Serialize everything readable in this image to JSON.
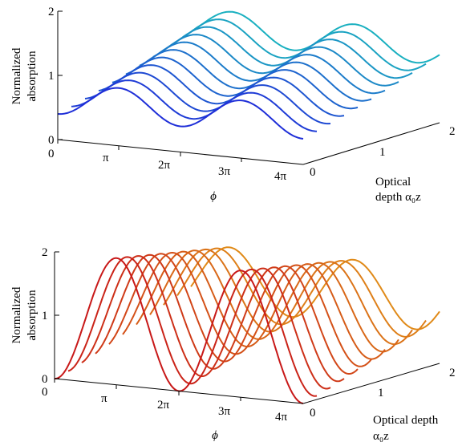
{
  "chart_data": [
    {
      "type": "line",
      "title": "",
      "ylabel_line1": "Normalized",
      "ylabel_line2": "absorption",
      "xlabel": "ϕ",
      "zlabel_line1": "Optical",
      "zlabel_line2": "depth α₀z",
      "ylim": [
        0,
        2
      ],
      "yticks": [
        "0",
        "1",
        "2"
      ],
      "xlim": [
        0,
        12.566
      ],
      "xticks": [
        "0",
        "π",
        "2π",
        "3π",
        "4π"
      ],
      "zlim": [
        0,
        2
      ],
      "zticks": [
        "0",
        "1",
        "2"
      ],
      "color_low": "#1f2fd8",
      "color_high": "#1ab0c0",
      "series": [
        {
          "z": 0.0,
          "amplitude": 0.5,
          "baseline": 0.4
        },
        {
          "z": 0.2,
          "amplitude": 0.5,
          "baseline": 0.45
        },
        {
          "z": 0.4,
          "amplitude": 0.5,
          "baseline": 0.5
        },
        {
          "z": 0.6,
          "amplitude": 0.5,
          "baseline": 0.55
        },
        {
          "z": 0.8,
          "amplitude": 0.5,
          "baseline": 0.6
        },
        {
          "z": 1.0,
          "amplitude": 0.5,
          "baseline": 0.65
        },
        {
          "z": 1.2,
          "amplitude": 0.5,
          "baseline": 0.7
        },
        {
          "z": 1.4,
          "amplitude": 0.5,
          "baseline": 0.75
        },
        {
          "z": 1.6,
          "amplitude": 0.5,
          "baseline": 0.8
        },
        {
          "z": 1.8,
          "amplitude": 0.5,
          "baseline": 0.85
        },
        {
          "z": 2.0,
          "amplitude": 0.5,
          "baseline": 0.9
        }
      ]
    },
    {
      "type": "line",
      "title": "",
      "ylabel_line1": "Normalized",
      "ylabel_line2": "absorption",
      "xlabel": "ϕ",
      "zlabel_line1": "Optical depth",
      "zlabel_line2": "α₀z",
      "ylim": [
        0,
        2
      ],
      "yticks": [
        "0",
        "1",
        "2"
      ],
      "xlim": [
        0,
        12.566
      ],
      "xticks": [
        "0",
        "π",
        "2π",
        "3π",
        "4π"
      ],
      "zlim": [
        0,
        2
      ],
      "zticks": [
        "0",
        "1",
        "2"
      ],
      "color_low": "#c81818",
      "color_high": "#e08a18",
      "series": [
        {
          "z": 0.0,
          "amplitude": 2.0,
          "baseline": 0.0
        },
        {
          "z": 0.2,
          "amplitude": 1.9,
          "baseline": 0.05
        },
        {
          "z": 0.4,
          "amplitude": 1.8,
          "baseline": 0.1
        },
        {
          "z": 0.6,
          "amplitude": 1.7,
          "baseline": 0.15
        },
        {
          "z": 0.8,
          "amplitude": 1.6,
          "baseline": 0.2
        },
        {
          "z": 1.0,
          "amplitude": 1.5,
          "baseline": 0.25
        },
        {
          "z": 1.2,
          "amplitude": 1.4,
          "baseline": 0.3
        },
        {
          "z": 1.4,
          "amplitude": 1.3,
          "baseline": 0.35
        },
        {
          "z": 1.6,
          "amplitude": 1.2,
          "baseline": 0.4
        },
        {
          "z": 1.8,
          "amplitude": 1.1,
          "baseline": 0.45
        },
        {
          "z": 2.0,
          "amplitude": 1.0,
          "baseline": 0.5
        }
      ]
    }
  ]
}
